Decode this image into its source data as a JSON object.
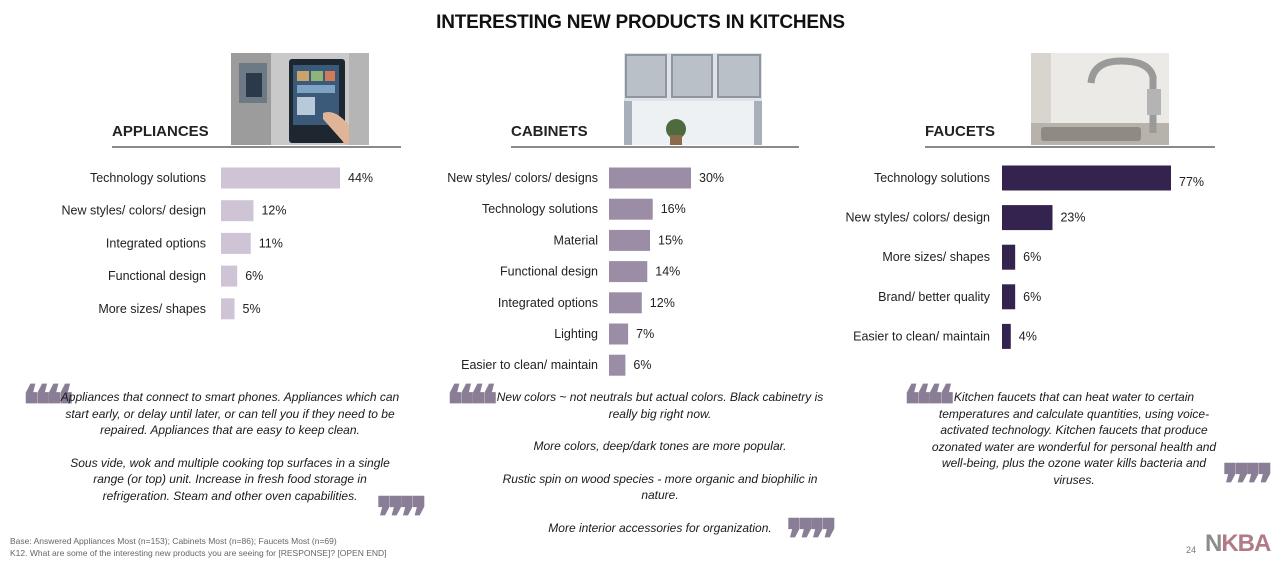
{
  "title": "INTERESTING NEW PRODUCTS IN KITCHENS",
  "colors": {
    "appliances_bar": "#cfc4d6",
    "cabinets_bar": "#9c8da6",
    "faucets_bar": "#34234f",
    "quote_mark": "#8a7e96",
    "rule": "#8a8a8a"
  },
  "chart_data": [
    {
      "type": "bar",
      "orientation": "horizontal",
      "title": "APPLIANCES",
      "categories": [
        "Technology solutions",
        "New styles/ colors/ design",
        "Integrated options",
        "Functional design",
        "More sizes/ shapes"
      ],
      "values": [
        44,
        12,
        11,
        6,
        5
      ],
      "labels": [
        "44%",
        "12%",
        "11%",
        "6%",
        "5%"
      ],
      "unit": "%",
      "xlim": [
        0,
        77
      ]
    },
    {
      "type": "bar",
      "orientation": "horizontal",
      "title": "CABINETS",
      "categories": [
        "New styles/ colors/ designs",
        "Technology solutions",
        "Material",
        "Functional design",
        "Integrated options",
        "Lighting",
        "Easier to clean/ maintain"
      ],
      "values": [
        30,
        16,
        15,
        14,
        12,
        7,
        6
      ],
      "labels": [
        "30%",
        "16%",
        "15%",
        "14%",
        "12%",
        "7%",
        "6%"
      ],
      "unit": "%",
      "xlim": [
        0,
        77
      ]
    },
    {
      "type": "bar",
      "orientation": "horizontal",
      "title": "FAUCETS",
      "categories": [
        "Technology solutions",
        "New styles/ colors/ design",
        "More sizes/ shapes",
        "Brand/ better quality",
        "Easier to clean/ maintain"
      ],
      "values": [
        77,
        23,
        6,
        6,
        4
      ],
      "labels": [
        "77%",
        "23%",
        "6%",
        "6%",
        "4%"
      ],
      "unit": "%",
      "xlim": [
        0,
        77
      ]
    }
  ],
  "quotes": {
    "appliances": [
      "Appliances that connect to smart phones. Appliances which can start early, or delay until later, or can tell you if they need to be repaired. Appliances that are easy to keep clean.",
      "Sous vide, wok and multiple cooking top surfaces in a single range (or top) unit. Increase in fresh food storage in refrigeration. Steam and other oven capabilities."
    ],
    "cabinets": [
      "New colors ~ not neutrals but actual colors. Black cabinetry is really big right now.",
      "More colors, deep/dark tones are more popular.",
      "Rustic spin on wood species - more organic and biophilic in nature.",
      "More interior accessories for organization."
    ],
    "faucets": [
      "Kitchen faucets that can heat water to certain temperatures and calculate quantities, using voice-activated technology. Kitchen faucets that produce ozonated water are wonderful for personal health and well-being, plus the ozone water kills bacteria and viruses."
    ]
  },
  "footer": {
    "base": "Base: Answered Appliances Most (n=153); Cabinets Most (n=86); Faucets Most (n=69)",
    "question": "K12. What are some of the interesting new products you are seeing for [RESPONSE]? [OPEN END]"
  },
  "page_number": "24",
  "logo": {
    "part1": "N",
    "part2": "KBA",
    "color1": "#8c8c8c",
    "color2": "#b07a86"
  },
  "photos": {
    "appliances": "refrigerator-touchscreen-photo",
    "cabinets": "kitchen-cabinets-photo",
    "faucets": "kitchen-faucet-photo"
  }
}
